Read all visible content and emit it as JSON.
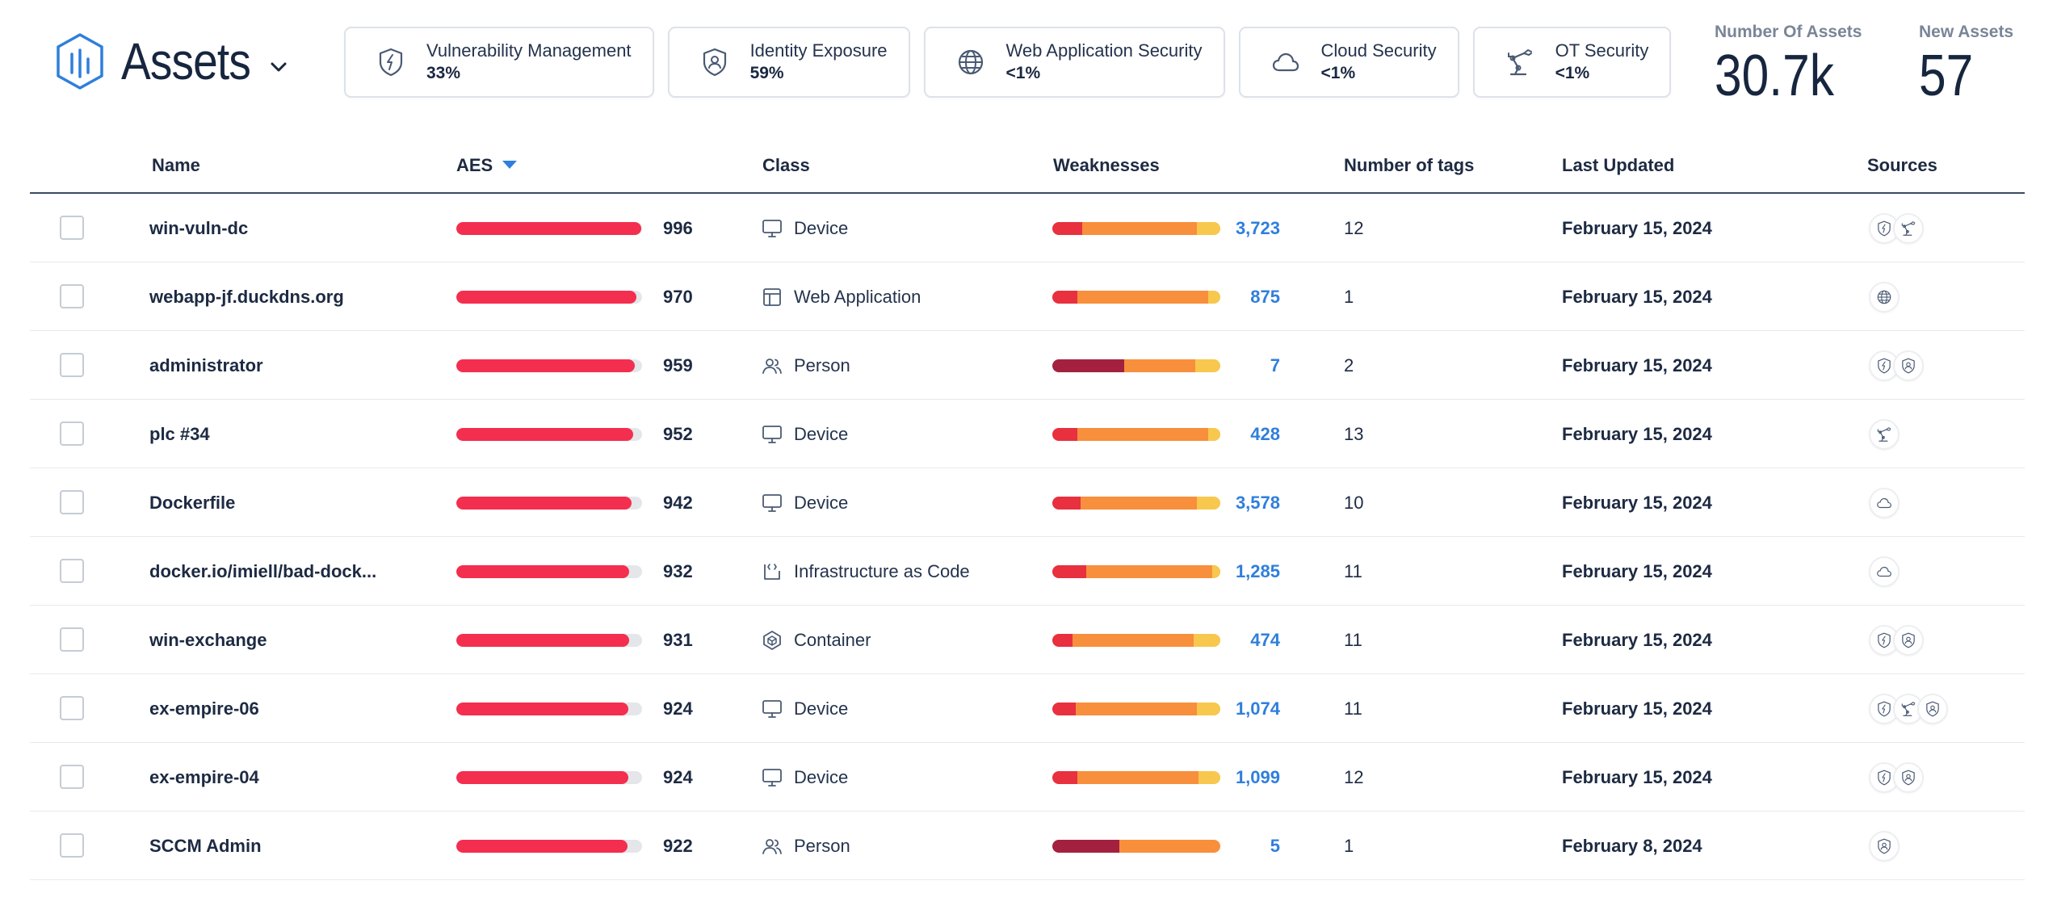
{
  "header": {
    "title": "Assets",
    "modules": [
      {
        "icon": "shield-bolt-icon",
        "name": "Vulnerability Management",
        "value": "33%"
      },
      {
        "icon": "identity-shield-icon",
        "name": "Identity Exposure",
        "value": "59%"
      },
      {
        "icon": "globe-icon",
        "name": "Web Application Security",
        "value": "<1%"
      },
      {
        "icon": "cloud-icon",
        "name": "Cloud Security",
        "value": "<1%"
      },
      {
        "icon": "ot-robot-arm-icon",
        "name": "OT Security",
        "value": "<1%"
      }
    ],
    "stats": [
      {
        "label": "Number Of Assets",
        "value": "30.7k"
      },
      {
        "label": "New Assets",
        "value": "57"
      }
    ]
  },
  "colors": {
    "aes": "#f42e4f",
    "critical": "#a3213f",
    "high": "#e8303f",
    "medium": "#f88f3c",
    "low": "#f7c84d",
    "link": "#2f7fdc"
  },
  "table": {
    "columns": {
      "name": "Name",
      "aes": "AES",
      "class": "Class",
      "weaknesses": "Weaknesses",
      "tags": "Number of tags",
      "updated": "Last Updated",
      "sources": "Sources"
    },
    "sort": {
      "column": "aes",
      "direction": "desc"
    },
    "rows": [
      {
        "name": "win-vuln-dc",
        "aes": 996,
        "class": "Device",
        "class_icon": "monitor-icon",
        "weak_mix": [
          0,
          0.18,
          0.68,
          0.14
        ],
        "weaknesses": "3,723",
        "tags": "12",
        "updated": "February 15, 2024",
        "sources": [
          "shield-bolt-icon",
          "ot-robot-arm-icon"
        ]
      },
      {
        "name": "webapp-jf.duckdns.org",
        "aes": 970,
        "class": "Web Application",
        "class_icon": "browser-window-icon",
        "weak_mix": [
          0,
          0.15,
          0.78,
          0.07
        ],
        "weaknesses": "875",
        "tags": "1",
        "updated": "February 15, 2024",
        "sources": [
          "globe-icon"
        ]
      },
      {
        "name": "administrator",
        "aes": 959,
        "class": "Person",
        "class_icon": "people-icon",
        "weak_mix": [
          0.43,
          0,
          0.42,
          0.15
        ],
        "weaknesses": "7",
        "tags": "2",
        "updated": "February 15, 2024",
        "sources": [
          "shield-bolt-icon",
          "identity-shield-icon"
        ]
      },
      {
        "name": "plc #34",
        "aes": 952,
        "class": "Device",
        "class_icon": "monitor-icon",
        "weak_mix": [
          0,
          0.15,
          0.78,
          0.07
        ],
        "weaknesses": "428",
        "tags": "13",
        "updated": "February 15, 2024",
        "sources": [
          "ot-robot-arm-icon"
        ]
      },
      {
        "name": "Dockerfile",
        "aes": 942,
        "class": "Device",
        "class_icon": "monitor-icon",
        "weak_mix": [
          0,
          0.17,
          0.69,
          0.14
        ],
        "weaknesses": "3,578",
        "tags": "10",
        "updated": "February 15, 2024",
        "sources": [
          "cloud-icon"
        ]
      },
      {
        "name": "docker.io/imiell/bad-dock...",
        "aes": 932,
        "class": "Infrastructure as Code",
        "class_icon": "code-doc-icon",
        "weak_mix": [
          0,
          0.2,
          0.75,
          0.05
        ],
        "weaknesses": "1,285",
        "tags": "11",
        "updated": "February 15, 2024",
        "sources": [
          "cloud-icon"
        ]
      },
      {
        "name": "win-exchange",
        "aes": 931,
        "class": "Container",
        "class_icon": "container-cube-icon",
        "weak_mix": [
          0,
          0.12,
          0.72,
          0.16
        ],
        "weaknesses": "474",
        "tags": "11",
        "updated": "February 15, 2024",
        "sources": [
          "shield-bolt-icon",
          "identity-shield-icon"
        ]
      },
      {
        "name": "ex-empire-06",
        "aes": 924,
        "class": "Device",
        "class_icon": "monitor-icon",
        "weak_mix": [
          0,
          0.14,
          0.72,
          0.14
        ],
        "weaknesses": "1,074",
        "tags": "11",
        "updated": "February 15, 2024",
        "sources": [
          "shield-bolt-icon",
          "ot-robot-arm-icon",
          "identity-shield-icon"
        ]
      },
      {
        "name": "ex-empire-04",
        "aes": 924,
        "class": "Device",
        "class_icon": "monitor-icon",
        "weak_mix": [
          0,
          0.15,
          0.72,
          0.13
        ],
        "weaknesses": "1,099",
        "tags": "12",
        "updated": "February 15, 2024",
        "sources": [
          "shield-bolt-icon",
          "identity-shield-icon"
        ]
      },
      {
        "name": "SCCM Admin",
        "aes": 922,
        "class": "Person",
        "class_icon": "people-icon",
        "weak_mix": [
          0.4,
          0,
          0.6,
          0
        ],
        "weaknesses": "5",
        "tags": "1",
        "updated": "February 8, 2024",
        "sources": [
          "identity-shield-icon"
        ]
      }
    ]
  }
}
